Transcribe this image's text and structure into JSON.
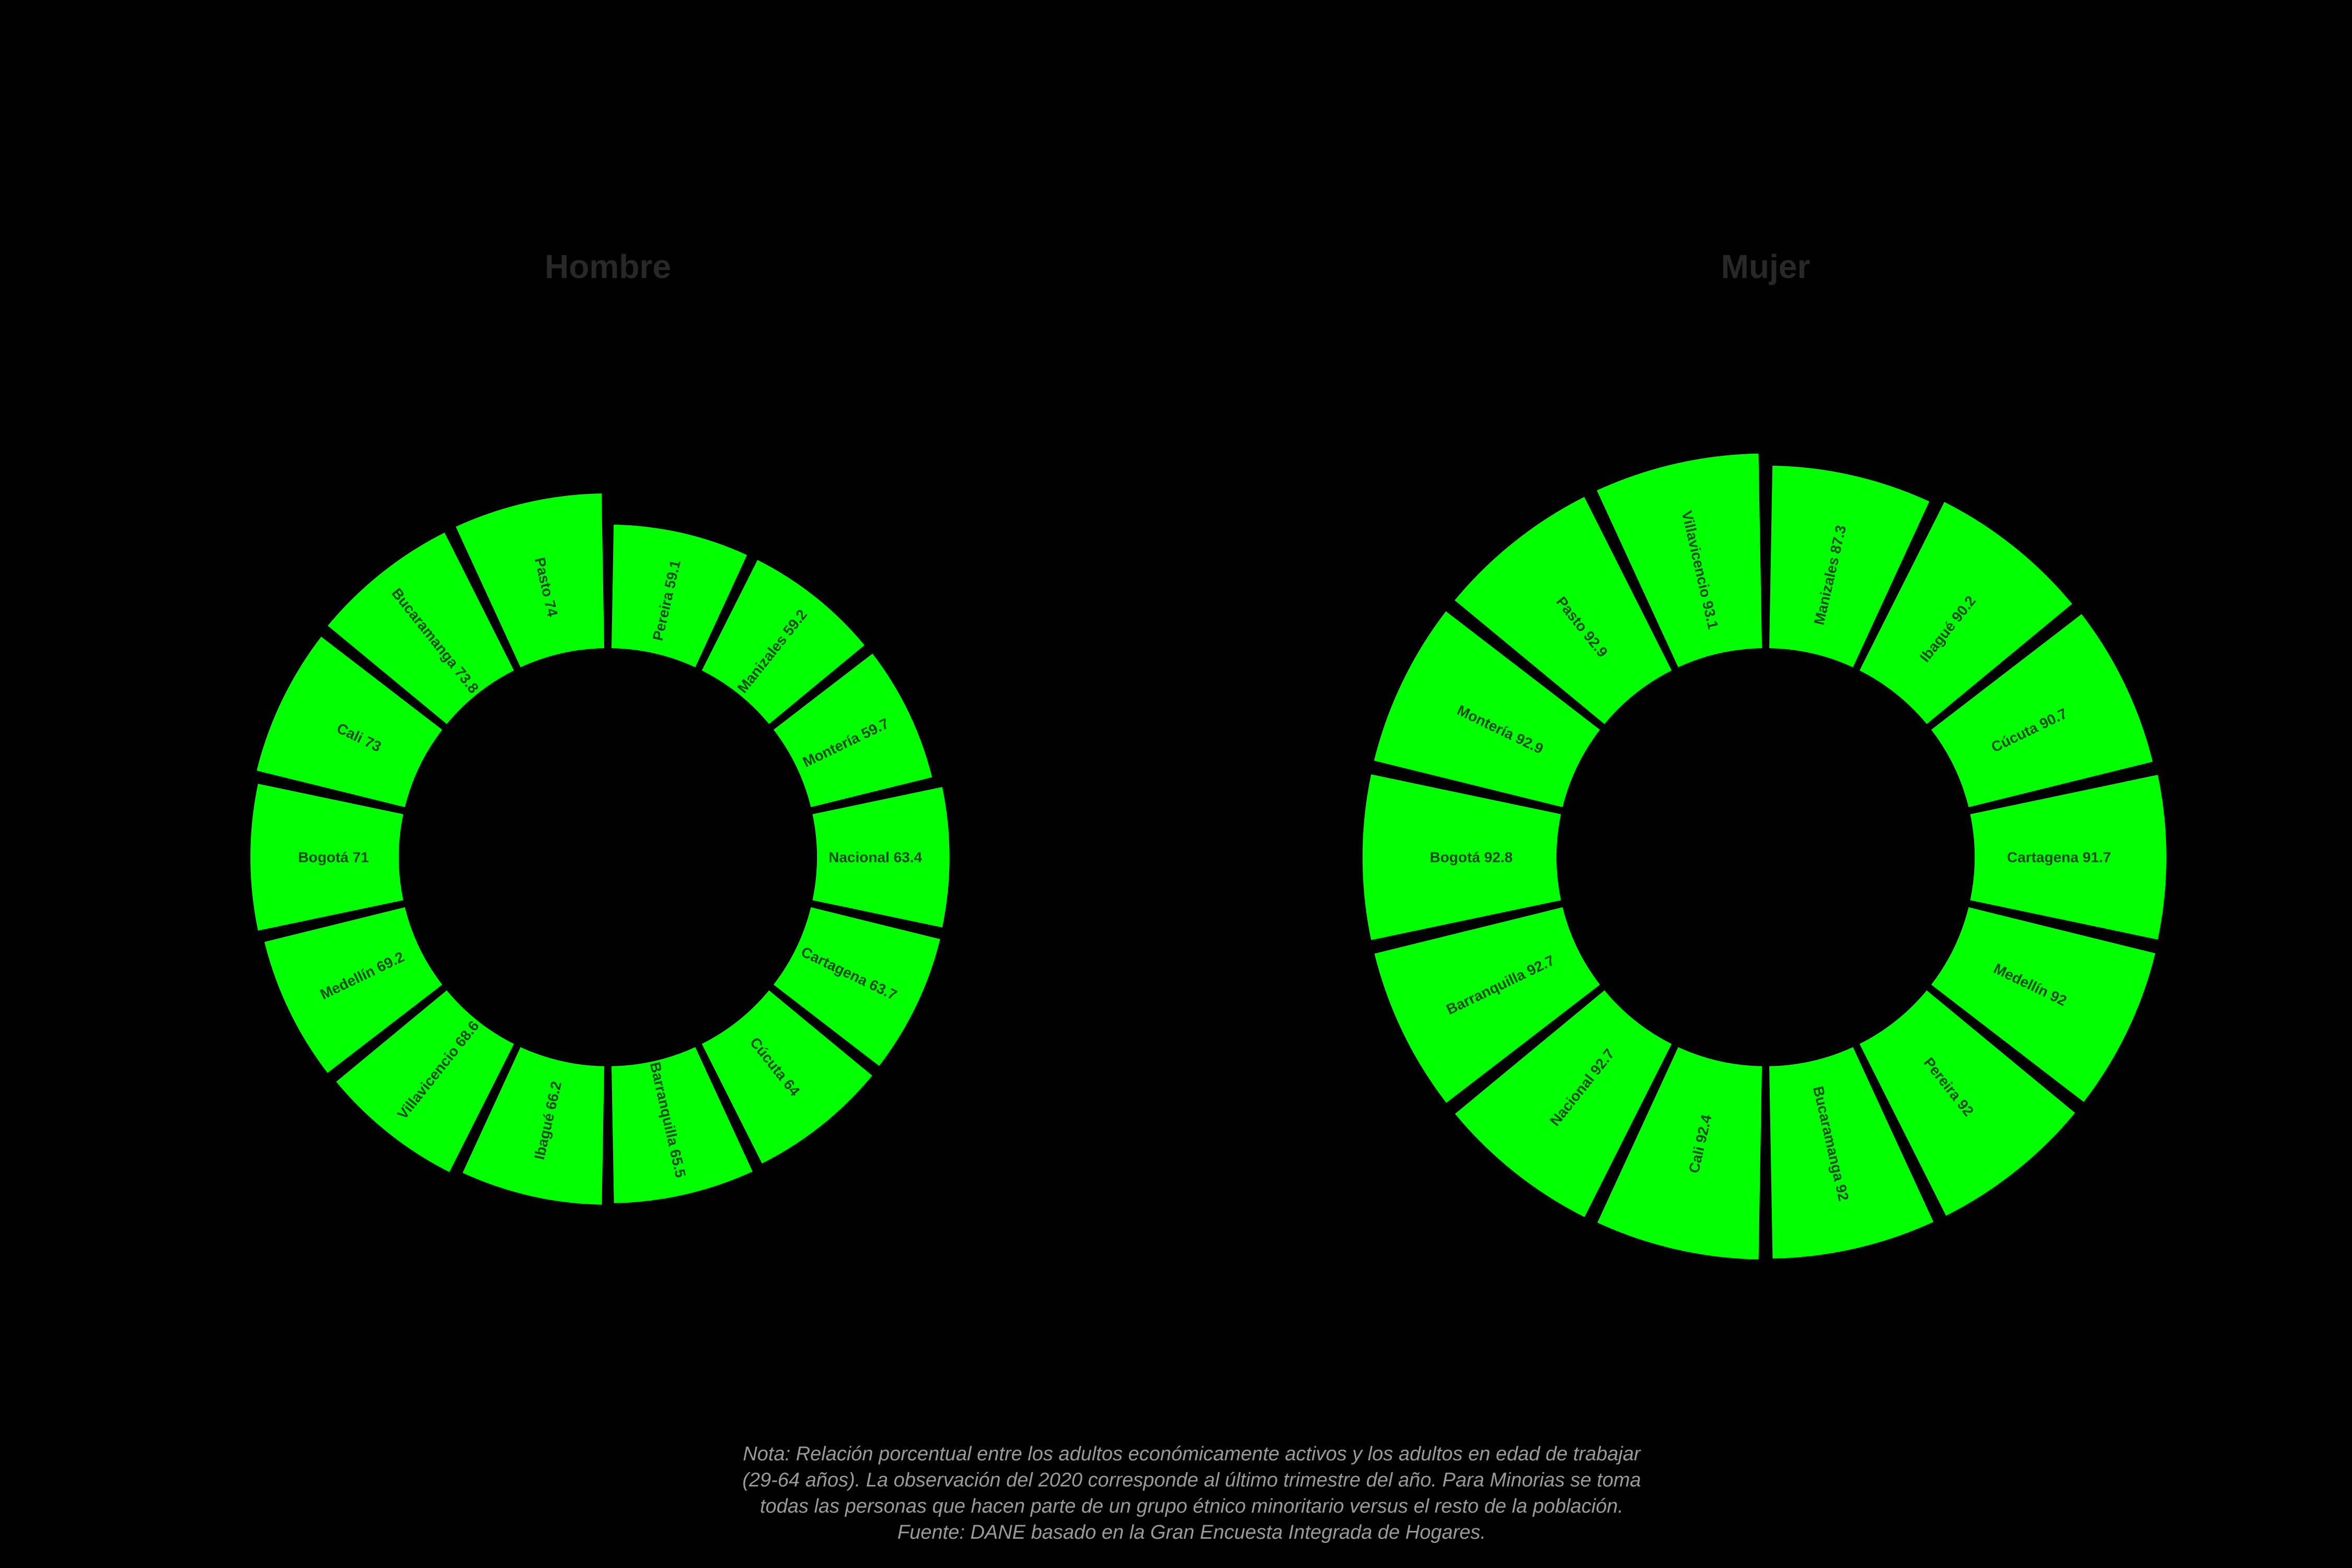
{
  "chart_data": {
    "type": "bar",
    "subtype": "circular-bar-donut",
    "layout_hint": "two polar panels on black background, 14 equal-angle wedges each, sorted ascending clockwise from 12 o'clock, wedge length encodes value, hole in center, no axes or gridlines",
    "value_range": [
      0,
      100
    ],
    "colors": {
      "background": "#000000",
      "segment": "#00ff00",
      "segment_label": "#0a4a0a",
      "panel_title": "#282828",
      "note": "#9a9a9a"
    },
    "panels": [
      {
        "title": "Hombre",
        "categories": [
          "Pereira",
          "Manizales",
          "Montería",
          "Nacional",
          "Cartagena",
          "Cúcuta",
          "Barranquilla",
          "Ibagué",
          "Villavicencio",
          "Medellín",
          "Bogotá",
          "Cali",
          "Bucaramanga",
          "Pasto"
        ],
        "values": [
          59.1,
          59.2,
          59.7,
          63.4,
          63.7,
          64,
          65.5,
          66.2,
          68.6,
          69.2,
          71,
          73,
          73.8,
          74
        ]
      },
      {
        "title": "Mujer",
        "categories": [
          "Manizales",
          "Ibagué",
          "Cúcuta",
          "Cartagena",
          "Medellín",
          "Pereira",
          "Bucaramanga",
          "Cali",
          "Nacional",
          "Barranquilla",
          "Bogotá",
          "Montería",
          "Pasto",
          "Villavicencio"
        ],
        "values": [
          87.3,
          90.2,
          90.7,
          91.7,
          92,
          92,
          92,
          92.4,
          92.7,
          92.7,
          92.8,
          92.9,
          92.9,
          93.1
        ]
      }
    ],
    "note_lines": [
      "Nota: Relación porcentual entre los adultos económicamente activos y los adultos en edad de trabajar",
      "(29-64 años). La observación del 2020 corresponde al último trimestre del año. Para Minorias se toma",
      "todas las personas que hacen parte de un grupo étnico minoritario versus el resto de la población.",
      "Fuente: DANE basado en la Gran Encuesta Integrada de Hogares."
    ]
  }
}
